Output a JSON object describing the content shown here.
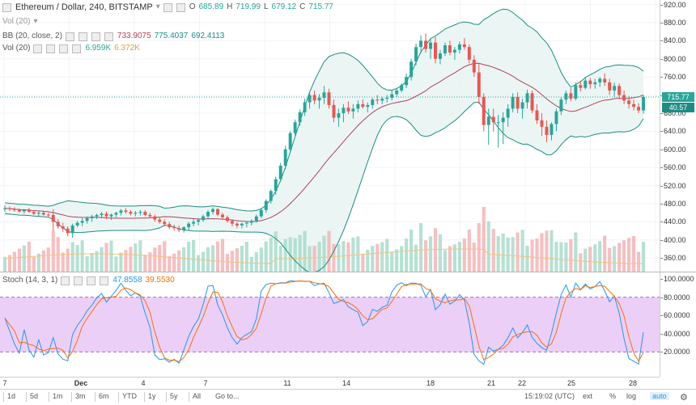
{
  "header": {
    "symbol_title": "Ethereum / Dollar, 240, BITSTAMP",
    "ohlc": {
      "open_label": "O",
      "open": "685.89",
      "high_label": "H",
      "high": "719.99",
      "low_label": "L",
      "low": "679.12",
      "close_label": "C",
      "close": "715.77"
    },
    "vol_ghost": "Vol (20)"
  },
  "indicators": {
    "bb": {
      "label": "BB (20, close, 2)",
      "v1": "733.9075",
      "v2": "775.4037",
      "v3": "692.4113"
    },
    "vol": {
      "label": "Vol (20)",
      "v1": "6.959K",
      "v2": "6.372K"
    },
    "stoch": {
      "label": "Stoch (14, 3, 1)",
      "k": "47.8558",
      "d": "39.5530"
    }
  },
  "price_axis": {
    "ticks": [
      "920.00",
      "880.00",
      "840.00",
      "800.00",
      "760.00",
      "720.00",
      "680.00",
      "640.00",
      "600.00",
      "560.00",
      "520.00",
      "480.00",
      "440.00",
      "400.00",
      "360.00"
    ],
    "last_price": "715.77",
    "last_price_color": "#26a69a",
    "bb_badge": "40.57",
    "bb_badge_color": "#1b8c84"
  },
  "stoch_axis": {
    "ticks": [
      "100.0000",
      "80.0000",
      "60.0000",
      "40.0000",
      "20.0000"
    ]
  },
  "time_axis": [
    "7",
    "Dec",
    "4",
    "7",
    "11",
    "14",
    "18",
    "21",
    "22",
    "25",
    "28"
  ],
  "bottom_bar": {
    "ranges": [
      "1d",
      "5d",
      "1m",
      "3m",
      "6m",
      "YTD",
      "1y",
      "5y",
      "All"
    ],
    "goto": "Go to...",
    "time": "15:19:02 (UTC)",
    "options": [
      "ext",
      "%",
      "log",
      "auto"
    ]
  },
  "colors": {
    "up": "#26a69a",
    "down": "#ef5350",
    "bb_band": "#1b8c84",
    "bb_basis": "#b0405a",
    "bb_fill": "#e6f4f1",
    "stoch_k": "#2196f3",
    "stoch_d": "#ff6d00",
    "stoch_band": "#e7c3f5",
    "vol_up": "#a8dccb",
    "vol_dn": "#f5b4b6",
    "vol_ma": "#f3c37e"
  },
  "chart_data": {
    "type": "candlestick",
    "candles": [
      [
        470,
        476,
        462,
        470
      ],
      [
        470,
        474,
        464,
        468
      ],
      [
        468,
        472,
        462,
        466
      ],
      [
        466,
        470,
        460,
        463
      ],
      [
        463,
        468,
        458,
        466
      ],
      [
        466,
        471,
        460,
        462
      ],
      [
        462,
        466,
        455,
        458
      ],
      [
        458,
        463,
        452,
        460
      ],
      [
        460,
        465,
        454,
        456
      ],
      [
        456,
        460,
        450,
        455
      ],
      [
        455,
        468,
        420,
        440
      ],
      [
        440,
        446,
        425,
        430
      ],
      [
        430,
        438,
        418,
        425
      ],
      [
        425,
        430,
        408,
        415
      ],
      [
        415,
        436,
        405,
        432
      ],
      [
        432,
        442,
        428,
        438
      ],
      [
        438,
        448,
        430,
        442
      ],
      [
        442,
        452,
        436,
        448
      ],
      [
        448,
        456,
        440,
        452
      ],
      [
        452,
        458,
        446,
        455
      ],
      [
        455,
        462,
        448,
        458
      ],
      [
        458,
        463,
        446,
        452
      ],
      [
        452,
        458,
        444,
        456
      ],
      [
        456,
        462,
        450,
        460
      ],
      [
        460,
        468,
        454,
        465
      ],
      [
        465,
        470,
        458,
        462
      ],
      [
        462,
        466,
        454,
        458
      ],
      [
        458,
        464,
        452,
        460
      ],
      [
        460,
        466,
        454,
        462
      ],
      [
        462,
        466,
        452,
        455
      ],
      [
        455,
        460,
        448,
        452
      ],
      [
        452,
        456,
        440,
        445
      ],
      [
        445,
        450,
        436,
        440
      ],
      [
        440,
        446,
        430,
        435
      ],
      [
        435,
        440,
        424,
        428
      ],
      [
        428,
        434,
        420,
        426
      ],
      [
        426,
        432,
        418,
        422
      ],
      [
        422,
        430,
        416,
        428
      ],
      [
        428,
        440,
        420,
        436
      ],
      [
        436,
        446,
        430,
        440
      ],
      [
        440,
        448,
        432,
        444
      ],
      [
        444,
        456,
        440,
        452
      ],
      [
        452,
        466,
        446,
        462
      ],
      [
        462,
        472,
        456,
        468
      ],
      [
        468,
        470,
        452,
        456
      ],
      [
        456,
        460,
        444,
        450
      ],
      [
        450,
        454,
        438,
        442
      ],
      [
        442,
        446,
        430,
        436
      ],
      [
        436,
        440,
        426,
        432
      ],
      [
        432,
        438,
        426,
        436
      ],
      [
        436,
        442,
        428,
        438
      ],
      [
        438,
        446,
        432,
        442
      ],
      [
        442,
        456,
        438,
        452
      ],
      [
        452,
        470,
        448,
        466
      ],
      [
        466,
        490,
        460,
        486
      ],
      [
        486,
        512,
        480,
        508
      ],
      [
        508,
        540,
        500,
        534
      ],
      [
        534,
        570,
        528,
        564
      ],
      [
        564,
        608,
        556,
        600
      ],
      [
        600,
        640,
        592,
        636
      ],
      [
        636,
        666,
        630,
        660
      ],
      [
        660,
        688,
        652,
        682
      ],
      [
        682,
        712,
        674,
        704
      ],
      [
        704,
        728,
        690,
        720
      ],
      [
        720,
        730,
        700,
        708
      ],
      [
        708,
        722,
        690,
        714
      ],
      [
        714,
        740,
        700,
        726
      ],
      [
        726,
        734,
        690,
        698
      ],
      [
        698,
        710,
        660,
        670
      ],
      [
        670,
        690,
        650,
        680
      ],
      [
        680,
        700,
        660,
        692
      ],
      [
        692,
        706,
        678,
        684
      ],
      [
        684,
        700,
        668,
        690
      ],
      [
        690,
        708,
        682,
        700
      ],
      [
        700,
        710,
        690,
        694
      ],
      [
        694,
        704,
        682,
        698
      ],
      [
        698,
        714,
        690,
        710
      ],
      [
        710,
        720,
        700,
        708
      ],
      [
        708,
        716,
        700,
        712
      ],
      [
        712,
        720,
        704,
        714
      ],
      [
        714,
        730,
        708,
        722
      ],
      [
        722,
        736,
        716,
        730
      ],
      [
        730,
        746,
        726,
        742
      ],
      [
        742,
        768,
        736,
        760
      ],
      [
        760,
        800,
        752,
        794
      ],
      [
        794,
        834,
        786,
        826
      ],
      [
        826,
        852,
        812,
        840
      ],
      [
        840,
        856,
        814,
        822
      ],
      [
        822,
        844,
        800,
        836
      ],
      [
        836,
        848,
        790,
        800
      ],
      [
        800,
        820,
        788,
        812
      ],
      [
        812,
        836,
        806,
        830
      ],
      [
        830,
        840,
        808,
        814
      ],
      [
        814,
        826,
        798,
        820
      ],
      [
        820,
        838,
        812,
        832
      ],
      [
        832,
        846,
        820,
        826
      ],
      [
        826,
        832,
        790,
        798
      ],
      [
        798,
        808,
        760,
        770
      ],
      [
        770,
        790,
        700,
        716
      ],
      [
        716,
        724,
        640,
        654
      ],
      [
        654,
        690,
        610,
        672
      ],
      [
        672,
        690,
        640,
        660
      ],
      [
        660,
        676,
        604,
        660
      ],
      [
        660,
        682,
        612,
        670
      ],
      [
        670,
        700,
        650,
        690
      ],
      [
        690,
        724,
        682,
        716
      ],
      [
        716,
        726,
        680,
        690
      ],
      [
        690,
        712,
        668,
        704
      ],
      [
        704,
        732,
        690,
        724
      ],
      [
        724,
        730,
        680,
        686
      ],
      [
        686,
        700,
        656,
        664
      ],
      [
        664,
        680,
        630,
        650
      ],
      [
        650,
        664,
        616,
        632
      ],
      [
        632,
        660,
        620,
        656
      ],
      [
        656,
        690,
        640,
        684
      ],
      [
        684,
        716,
        676,
        710
      ],
      [
        710,
        730,
        700,
        724
      ],
      [
        724,
        736,
        706,
        712
      ],
      [
        712,
        748,
        708,
        742
      ],
      [
        742,
        752,
        728,
        736
      ],
      [
        736,
        760,
        732,
        752
      ],
      [
        752,
        758,
        734,
        744
      ],
      [
        744,
        756,
        734,
        748
      ],
      [
        748,
        760,
        738,
        756
      ],
      [
        756,
        768,
        740,
        748
      ],
      [
        748,
        756,
        720,
        730
      ],
      [
        730,
        748,
        716,
        740
      ],
      [
        740,
        746,
        714,
        720
      ],
      [
        720,
        730,
        700,
        708
      ],
      [
        708,
        718,
        690,
        700
      ],
      [
        700,
        710,
        686,
        694
      ],
      [
        694,
        702,
        680,
        686
      ],
      [
        686,
        720,
        679,
        716
      ]
    ],
    "price_ylim": [
      330,
      930
    ],
    "stoch_ylim": [
      0,
      100
    ]
  }
}
